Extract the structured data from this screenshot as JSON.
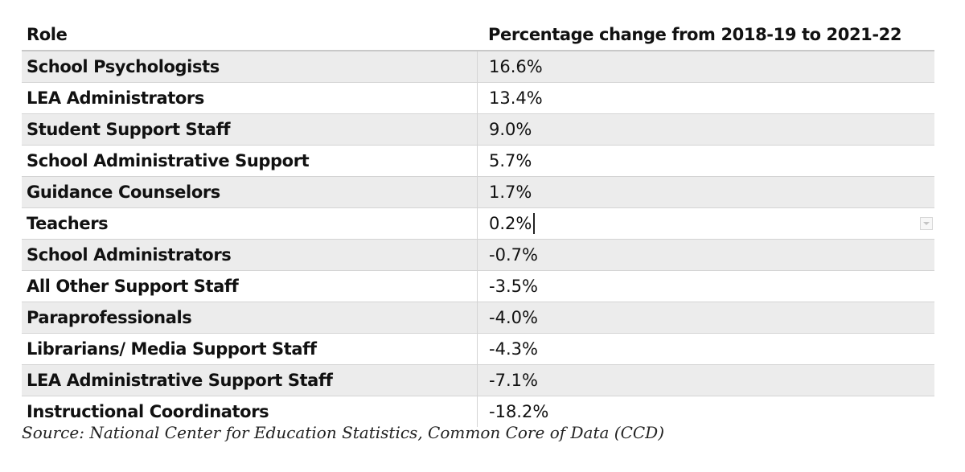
{
  "table": {
    "header": {
      "role": "Role",
      "change": "Percentage change from 2018-19 to 2021-22"
    },
    "rows": [
      {
        "role": "School Psychologists",
        "change": "16.6%"
      },
      {
        "role": "LEA Administrators",
        "change": "13.4%"
      },
      {
        "role": "Student Support Staff",
        "change": "9.0%"
      },
      {
        "role": "School Administrative Support",
        "change": "5.7%"
      },
      {
        "role": "Guidance Counselors",
        "change": "1.7%"
      },
      {
        "role": "Teachers",
        "change": "0.2%"
      },
      {
        "role": "School Administrators",
        "change": "-0.7%"
      },
      {
        "role": "All Other Support Staff",
        "change": "-3.5%"
      },
      {
        "role": "Paraprofessionals",
        "change": "-4.0%"
      },
      {
        "role": "Librarians/ Media Support Staff",
        "change": "-4.3%"
      },
      {
        "role": "LEA Administrative Support Staff",
        "change": "-7.1%"
      },
      {
        "role": "Instructional Coordinators",
        "change": "-18.2%"
      }
    ]
  },
  "source": "Source: National Center for Education Statistics, Common Core of Data (CCD)",
  "colors": {
    "shaded_row": "#ececec",
    "border": "#d4d4d4",
    "text": "#111111"
  }
}
